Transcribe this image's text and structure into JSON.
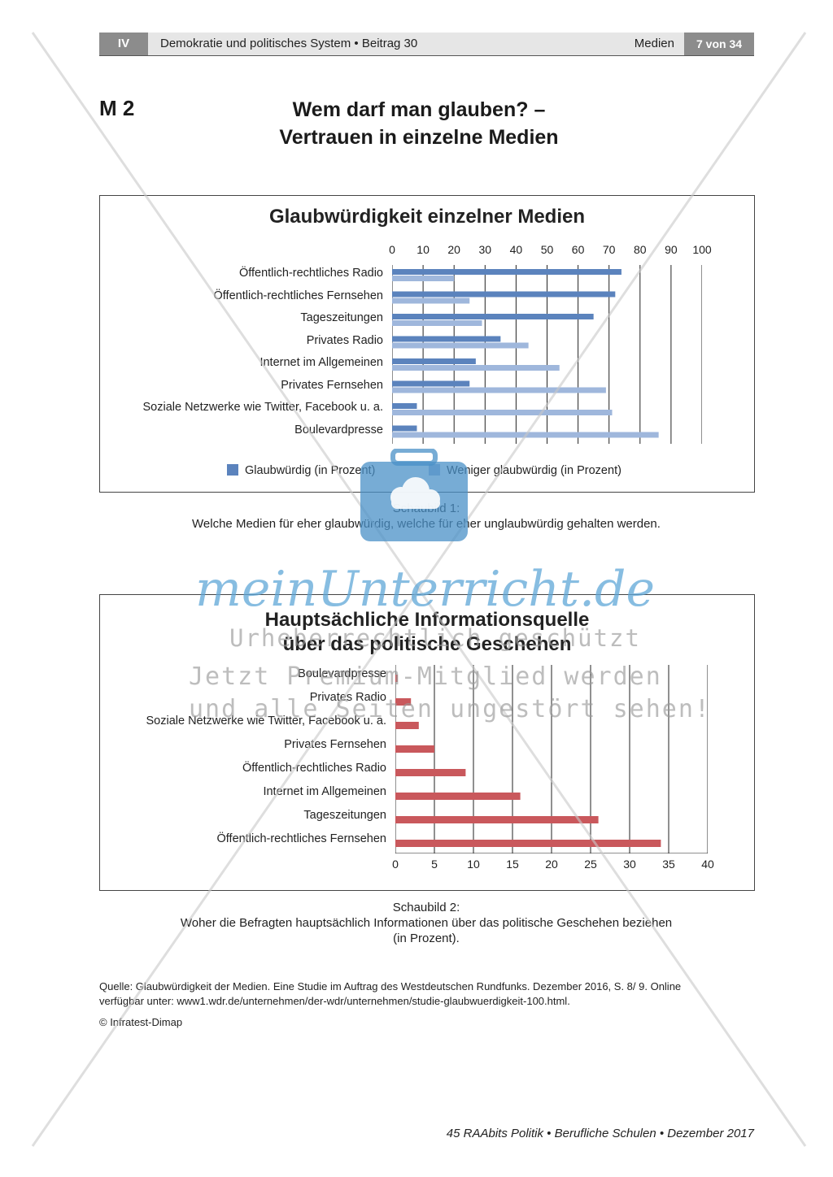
{
  "header": {
    "section": "IV",
    "title": "Demokratie und politisches System • Beitrag 30",
    "topic": "Medien",
    "page": "7 von 34"
  },
  "material": {
    "label": "M 2",
    "title_line1": "Wem darf man glauben? –",
    "title_line2": "Vertrauen in einzelne Medien"
  },
  "chart_data": [
    {
      "type": "bar",
      "orientation": "horizontal",
      "title": "Glaubwürdigkeit einzelner Medien",
      "categories": [
        "Öffentlich-rechtliches Radio",
        "Öffentlich-rechtliches Fernsehen",
        "Tageszeitungen",
        "Privates Radio",
        "Internet im Allgemeinen",
        "Privates Fernsehen",
        "Soziale Netzwerke wie Twitter, Facebook u. a.",
        "Boulevardpresse"
      ],
      "series": [
        {
          "name": "Glaubwürdig (in Prozent)",
          "values": [
            74,
            72,
            65,
            35,
            27,
            25,
            8,
            8
          ],
          "color": "#5b83bd"
        },
        {
          "name": "Weniger glaubwürdig (in Prozent)",
          "values": [
            20,
            25,
            29,
            44,
            54,
            69,
            71,
            86
          ],
          "color": "#9fb7dc"
        }
      ],
      "xticks": [
        "0",
        "10",
        "20",
        "30",
        "40",
        "50",
        "60",
        "70",
        "80",
        "90",
        "100"
      ],
      "xlim": [
        0,
        100
      ],
      "axis_position": "top",
      "legend": "bottom",
      "grid": true,
      "caption_title": "Schaubild 1:",
      "caption_text": "Welche Medien für eher glaubwürdig, welche für eher unglaubwürdig gehalten werden."
    },
    {
      "type": "bar",
      "orientation": "horizontal",
      "title_line1": "Hauptsächliche Informationsquelle",
      "title_line2": "über das politische Geschehen",
      "categories": [
        "Boulevardpresse",
        "Privates Radio",
        "Soziale Netzwerke wie Twitter, Facebook u. a.",
        "Privates Fernsehen",
        "Öffentlich-rechtliches Radio",
        "Internet im Allgemeinen",
        "Tageszeitungen",
        "Öffentlich-rechtliches Fernsehen"
      ],
      "series": [
        {
          "values": [
            0.3,
            2,
            3,
            5,
            9,
            16,
            26,
            34
          ],
          "color": "#c9585c"
        }
      ],
      "xticks": [
        "0",
        "5",
        "10",
        "15",
        "20",
        "25",
        "30",
        "35",
        "40"
      ],
      "xlim": [
        0,
        40
      ],
      "axis_position": "bottom",
      "grid": true,
      "caption_title": "Schaubild 2:",
      "caption_line1": "Woher die Befragten hauptsächlich Informationen über das politische Geschehen beziehen",
      "caption_line2": "(in Prozent)."
    }
  ],
  "source": {
    "line1": "Quelle: Glaubwürdigkeit der Medien. Eine Studie im Auftrag des Westdeutschen Rundfunks. Dezember 2016, S. 8/ 9. Online",
    "line2": "verfügbar unter: www1.wdr.de/unternehmen/der-wdr/unternehmen/studie-glaubwuerdigkeit-100.html.",
    "copyright": "© Infratest-Dimap"
  },
  "footer": "45  RAAbits Politik • Berufliche Schulen • Dezember 2017",
  "watermark": {
    "brand": "meinUnterricht.de",
    "line1": "Urheberrechtlich geschützt",
    "line2": "Jetzt Premium-Mitglied werden",
    "line3": "und alle Seiten ungestört sehen!",
    "icon": "briefcase-cloud-icon"
  }
}
